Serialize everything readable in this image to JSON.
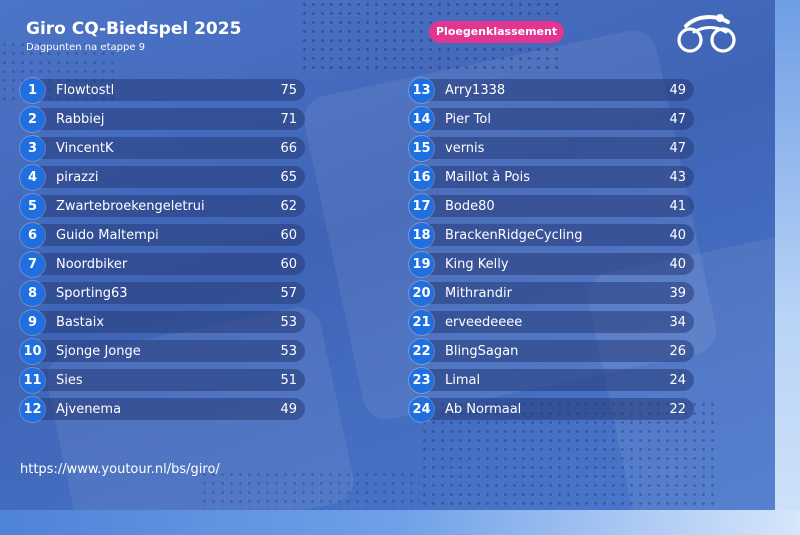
{
  "header": {
    "title": "Giro CQ-Biedspel 2025",
    "subtitle": "Dagpunten na etappe 9",
    "badge": "Ploegenklassement"
  },
  "logo": {
    "icon": "cyclist-logo-icon"
  },
  "left_list": [
    {
      "rank": "1",
      "name": "Flowtostl",
      "points": "75"
    },
    {
      "rank": "2",
      "name": "Rabbiej",
      "points": "71"
    },
    {
      "rank": "3",
      "name": "VincentK",
      "points": "66"
    },
    {
      "rank": "4",
      "name": "pirazzi",
      "points": "65"
    },
    {
      "rank": "5",
      "name": "Zwartebroekengeletrui",
      "points": "62"
    },
    {
      "rank": "6",
      "name": "Guido Maltempi",
      "points": "60"
    },
    {
      "rank": "7",
      "name": "Noordbiker",
      "points": "60"
    },
    {
      "rank": "8",
      "name": "Sporting63",
      "points": "57"
    },
    {
      "rank": "9",
      "name": "Bastaix",
      "points": "53"
    },
    {
      "rank": "10",
      "name": "Sjonge Jonge",
      "points": "53"
    },
    {
      "rank": "11",
      "name": "Sies",
      "points": "51"
    },
    {
      "rank": "12",
      "name": "Ajvenema",
      "points": "49"
    }
  ],
  "right_list": [
    {
      "rank": "13",
      "name": "Arry1338",
      "points": "49"
    },
    {
      "rank": "14",
      "name": "Pier Tol",
      "points": "47"
    },
    {
      "rank": "15",
      "name": "vernis",
      "points": "47"
    },
    {
      "rank": "16",
      "name": "Maillot à Pois",
      "points": "43"
    },
    {
      "rank": "17",
      "name": "Bode80",
      "points": "41"
    },
    {
      "rank": "18",
      "name": "BrackenRidgeCycling",
      "points": "40"
    },
    {
      "rank": "19",
      "name": "King Kelly",
      "points": "40"
    },
    {
      "rank": "20",
      "name": "Mithrandir",
      "points": "39"
    },
    {
      "rank": "21",
      "name": "erveedeeee",
      "points": "34"
    },
    {
      "rank": "22",
      "name": "BlingSagan",
      "points": "26"
    },
    {
      "rank": "23",
      "name": "Limal",
      "points": "24"
    },
    {
      "rank": "24",
      "name": "Ab Normaal",
      "points": "22"
    }
  ],
  "footer": {
    "url": "https://www.youtour.nl/bs/giro/"
  },
  "colors": {
    "badge": "#e2358f",
    "rank_circle": "#1f6fe0",
    "background": "#4c74c7"
  }
}
